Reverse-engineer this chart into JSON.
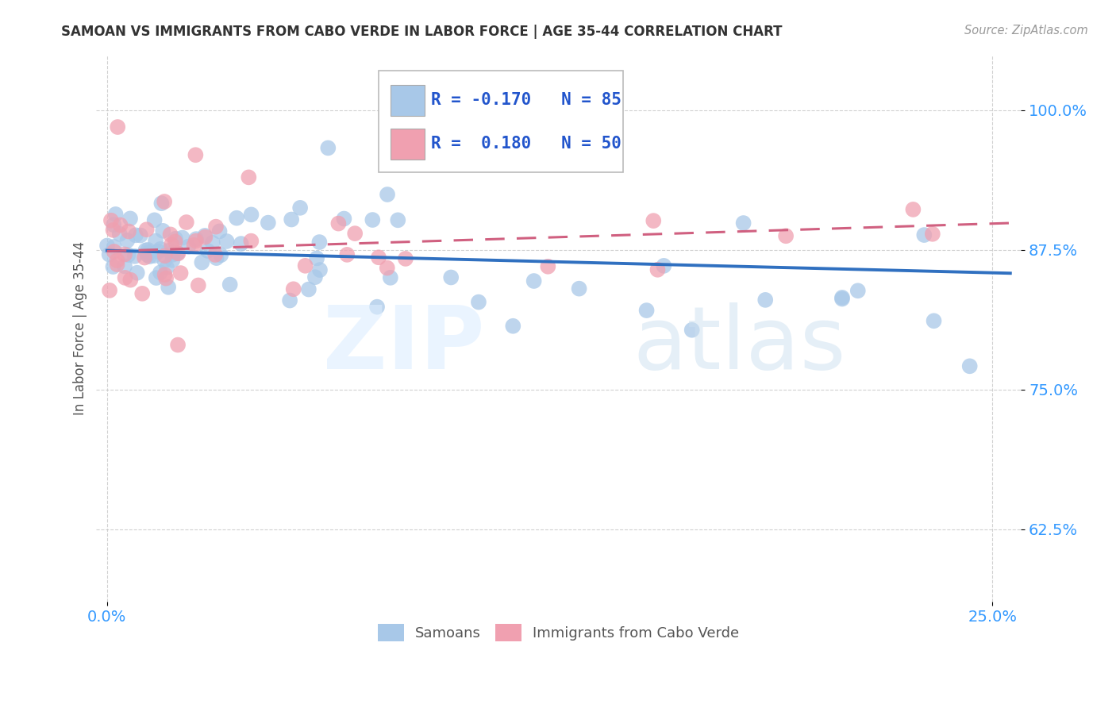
{
  "title": "SAMOAN VS IMMIGRANTS FROM CABO VERDE IN LABOR FORCE | AGE 35-44 CORRELATION CHART",
  "source": "Source: ZipAtlas.com",
  "ylabel": "In Labor Force | Age 35-44",
  "color_blue": "#a8c8e8",
  "color_pink": "#f0a0b0",
  "line_blue": "#3070c0",
  "line_pink": "#d06080",
  "r_blue": -0.17,
  "r_pink": 0.18,
  "n_blue": 85,
  "n_pink": 50,
  "xlim": [
    0.0,
    0.255
  ],
  "ylim": [
    0.56,
    1.05
  ],
  "y_ticks": [
    0.625,
    0.75,
    0.875,
    1.0
  ],
  "y_tick_labels": [
    "62.5%",
    "75.0%",
    "87.5%",
    "100.0%"
  ],
  "x_ticks": [
    0.0,
    0.25
  ],
  "x_tick_labels": [
    "0.0%",
    "25.0%"
  ],
  "watermark_zip": "ZIP",
  "watermark_atlas": "atlas",
  "legend_blue_text": "R = -0.170   N = 85",
  "legend_pink_text": "R =  0.180   N = 50"
}
